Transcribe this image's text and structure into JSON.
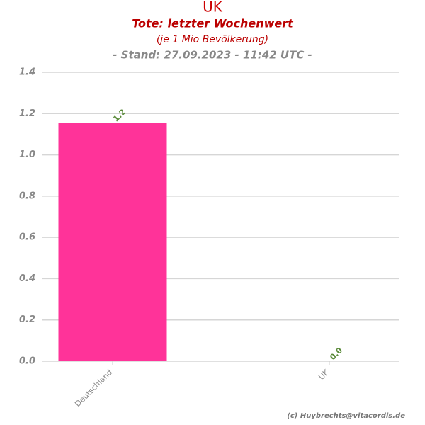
{
  "chart_data": {
    "type": "bar",
    "title": "UK",
    "subtitle": "Tote: letzter Wochenwert",
    "subtitle2": "(je 1 Mio Bevölkerung)",
    "subtitle3": "- Stand: 27.09.2023 - 11:42 UTC -",
    "footer": "(c) Huybrechts@vitacordis.de",
    "categories": [
      "Deutschland",
      "UK"
    ],
    "values": [
      1.155,
      0
    ],
    "value_labels": [
      "1.2",
      "0.0"
    ],
    "color": "#ff3399",
    "ylim": [
      0,
      1.4
    ],
    "yticks": [
      {
        "value": 0,
        "label": "0.0"
      },
      0.2,
      0.4,
      0.6,
      0.8,
      {
        "value": 1,
        "label": "1.0"
      },
      1.2,
      1.4
    ],
    "grid": true
  }
}
